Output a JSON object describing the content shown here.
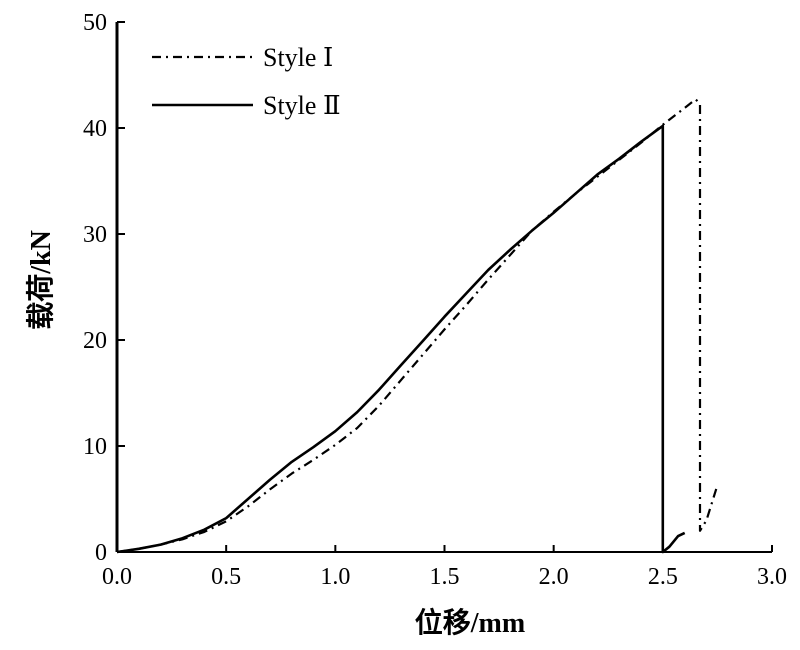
{
  "chart_data": {
    "type": "line",
    "title": "",
    "xlabel": "位移/mm",
    "ylabel": "载荷/kN",
    "xlim": [
      0,
      3
    ],
    "ylim": [
      0,
      50
    ],
    "x_ticks": [
      "0.0",
      "0.5",
      "1.0",
      "1.5",
      "2.0",
      "2.5",
      "3.0"
    ],
    "y_ticks": [
      "0",
      "10",
      "20",
      "30",
      "40",
      "50"
    ],
    "grid": false,
    "legend_position": "top-left",
    "series": [
      {
        "name": "Style Ⅰ",
        "style": "dash-dot",
        "color": "#000000",
        "points": [
          [
            0.0,
            0.0
          ],
          [
            0.1,
            0.3
          ],
          [
            0.2,
            0.7
          ],
          [
            0.3,
            1.2
          ],
          [
            0.4,
            1.9
          ],
          [
            0.5,
            2.9
          ],
          [
            0.6,
            4.3
          ],
          [
            0.7,
            5.9
          ],
          [
            0.8,
            7.4
          ],
          [
            0.9,
            8.7
          ],
          [
            1.0,
            10.1
          ],
          [
            1.1,
            11.7
          ],
          [
            1.2,
            13.8
          ],
          [
            1.3,
            16.2
          ],
          [
            1.4,
            18.6
          ],
          [
            1.5,
            21.0
          ],
          [
            1.6,
            23.3
          ],
          [
            1.7,
            25.7
          ],
          [
            1.8,
            28.0
          ],
          [
            1.9,
            30.3
          ],
          [
            2.0,
            32.1
          ],
          [
            2.1,
            33.8
          ],
          [
            2.2,
            35.4
          ],
          [
            2.3,
            37.0
          ],
          [
            2.4,
            38.6
          ],
          [
            2.5,
            40.3
          ],
          [
            2.6,
            41.9
          ],
          [
            2.65,
            42.7
          ],
          [
            2.67,
            42.3
          ],
          [
            2.67,
            2.0
          ],
          [
            2.7,
            3.0
          ],
          [
            2.73,
            5.0
          ],
          [
            2.75,
            6.3
          ]
        ]
      },
      {
        "name": "Style Ⅱ",
        "style": "solid",
        "color": "#000000",
        "points": [
          [
            0.0,
            0.0
          ],
          [
            0.1,
            0.3
          ],
          [
            0.2,
            0.7
          ],
          [
            0.3,
            1.3
          ],
          [
            0.4,
            2.1
          ],
          [
            0.5,
            3.2
          ],
          [
            0.6,
            5.0
          ],
          [
            0.7,
            6.8
          ],
          [
            0.8,
            8.5
          ],
          [
            0.9,
            9.9
          ],
          [
            1.0,
            11.4
          ],
          [
            1.1,
            13.2
          ],
          [
            1.2,
            15.3
          ],
          [
            1.3,
            17.6
          ],
          [
            1.4,
            19.9
          ],
          [
            1.5,
            22.2
          ],
          [
            1.6,
            24.4
          ],
          [
            1.7,
            26.6
          ],
          [
            1.8,
            28.5
          ],
          [
            1.9,
            30.3
          ],
          [
            2.0,
            32.0
          ],
          [
            2.1,
            33.8
          ],
          [
            2.2,
            35.6
          ],
          [
            2.3,
            37.1
          ],
          [
            2.4,
            38.7
          ],
          [
            2.5,
            40.2
          ],
          [
            2.5,
            0.0
          ],
          [
            2.5,
            10.5
          ],
          [
            2.5,
            0.0
          ],
          [
            2.53,
            0.5
          ],
          [
            2.57,
            1.5
          ],
          [
            2.6,
            1.8
          ]
        ]
      }
    ]
  }
}
